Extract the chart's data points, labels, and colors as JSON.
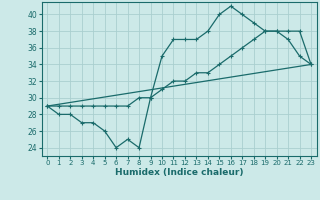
{
  "xlabel": "Humidex (Indice chaleur)",
  "bg_color": "#cce9e8",
  "grid_color": "#aacfcf",
  "line_color": "#1a6b6b",
  "xlim": [
    -0.5,
    23.5
  ],
  "ylim": [
    23.0,
    41.5
  ],
  "yticks": [
    24,
    26,
    28,
    30,
    32,
    34,
    36,
    38,
    40
  ],
  "xticks": [
    0,
    1,
    2,
    3,
    4,
    5,
    6,
    7,
    8,
    9,
    10,
    11,
    12,
    13,
    14,
    15,
    16,
    17,
    18,
    19,
    20,
    21,
    22,
    23
  ],
  "line1_x": [
    0,
    1,
    2,
    3,
    4,
    5,
    6,
    7,
    8,
    9,
    10,
    11,
    12,
    13,
    14,
    15,
    16,
    17,
    18,
    19,
    20,
    21,
    22,
    23
  ],
  "line1_y": [
    29,
    28,
    28,
    27,
    27,
    26,
    24,
    25,
    24,
    30,
    35,
    37,
    37,
    37,
    38,
    40,
    41,
    40,
    39,
    38,
    38,
    37,
    35,
    34
  ],
  "line2_x": [
    0,
    1,
    2,
    3,
    4,
    5,
    6,
    7,
    8,
    9,
    10,
    11,
    12,
    13,
    14,
    15,
    16,
    17,
    18,
    19,
    20,
    21,
    22,
    23
  ],
  "line2_y": [
    29,
    29,
    29,
    29,
    29,
    29,
    29,
    29,
    30,
    30,
    31,
    32,
    32,
    33,
    33,
    34,
    35,
    36,
    37,
    38,
    38,
    38,
    38,
    34
  ],
  "line3_x": [
    0,
    23
  ],
  "line3_y": [
    29,
    34
  ]
}
